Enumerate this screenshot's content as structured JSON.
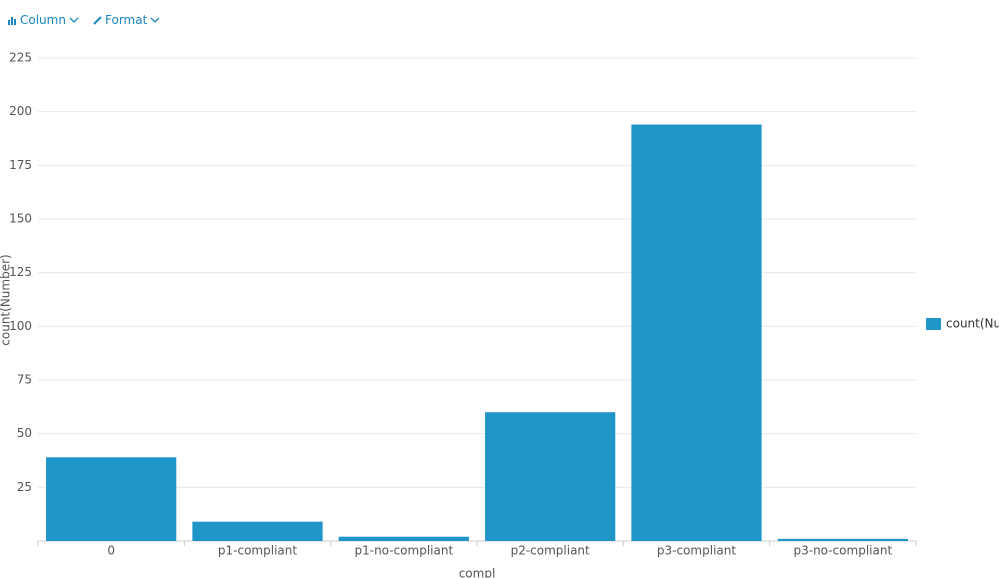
{
  "toolbar": {
    "chart_type": "Column",
    "format": "Format"
  },
  "chart_data": {
    "type": "bar",
    "x_label": "compl",
    "y_label": "count(Number)",
    "categories": [
      "0",
      "p1-compliant",
      "p1-no-compliant",
      "p2-compliant",
      "p3-compliant",
      "p3-no-compliant"
    ],
    "series": [
      {
        "name": "count(Number)",
        "color": "#1f95c8",
        "values": [
          39,
          9,
          2,
          60,
          194,
          1
        ]
      }
    ],
    "ylim": [
      0,
      225
    ],
    "yticks": [
      25,
      50,
      75,
      100,
      125,
      150,
      175,
      200,
      225
    ],
    "grid": true,
    "legend": "right"
  }
}
